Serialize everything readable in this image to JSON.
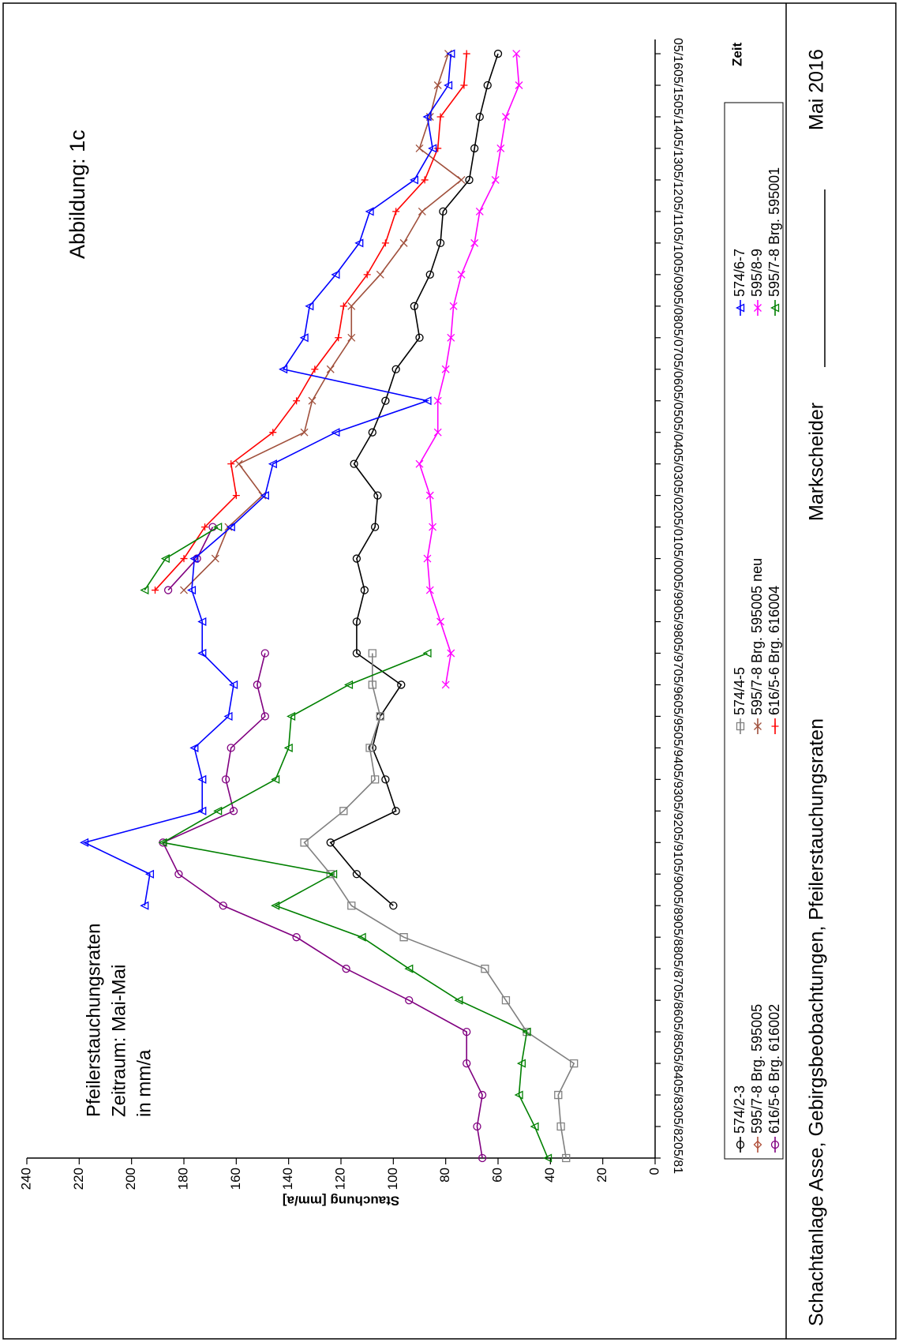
{
  "chart_data": {
    "type": "line",
    "title": "Abbildung:  1c",
    "annotation": [
      "Pfeilerstauchungsraten",
      "Zeitraum: Mai-Mai",
      "in mm/a"
    ],
    "x_label": "Zeit",
    "y_label": "Stauchung [mm/a]",
    "footer": {
      "left": "Schachtanlage Asse, Gebirgsbeobachtungen, Pfeilerstauchungsraten",
      "middle": "Markscheider",
      "right": "Mai 2016"
    },
    "categories": [
      "05/81",
      "05/82",
      "05/83",
      "05/84",
      "05/85",
      "05/86",
      "05/87",
      "05/88",
      "05/89",
      "05/90",
      "05/91",
      "05/92",
      "05/93",
      "05/94",
      "05/95",
      "05/96",
      "05/97",
      "05/98",
      "05/99",
      "05/00",
      "05/01",
      "05/02",
      "05/03",
      "05/04",
      "05/05",
      "05/06",
      "05/07",
      "05/08",
      "05/09",
      "05/10",
      "05/11",
      "05/12",
      "05/13",
      "05/14",
      "05/15",
      "05/16"
    ],
    "ylim": [
      0,
      240
    ],
    "yticks": [
      0,
      20,
      40,
      60,
      80,
      100,
      120,
      140,
      160,
      180,
      200,
      220,
      240
    ],
    "series": [
      {
        "name": "574/2-3",
        "color": "#000000",
        "marker": "circle",
        "values": [
          null,
          null,
          null,
          null,
          null,
          null,
          null,
          null,
          100,
          114,
          124,
          99,
          103,
          108,
          105,
          97,
          114,
          114,
          111,
          114,
          107,
          106,
          115,
          108,
          103,
          99,
          90,
          92,
          86,
          82,
          81,
          71,
          69,
          67,
          64,
          60
        ]
      },
      {
        "name": "595/7-8 Brg. 595005",
        "color": "#b0503a",
        "marker": "diamond",
        "values": [
          null,
          null,
          null,
          null,
          null,
          null,
          null,
          null,
          null,
          null,
          null,
          null,
          null,
          null,
          null,
          null,
          null,
          null,
          null,
          null,
          null,
          null,
          null,
          null,
          null,
          null,
          null,
          null,
          null,
          null,
          null,
          null,
          null,
          null,
          null,
          null
        ]
      },
      {
        "name": "616/5-6 Brg. 616002",
        "color": "#800080",
        "marker": "circle",
        "values": [
          66,
          68,
          66,
          72,
          72,
          94,
          118,
          137,
          165,
          182,
          188,
          161,
          164,
          162,
          149,
          152,
          149,
          null,
          186,
          175,
          169,
          null,
          null,
          null,
          null,
          null,
          null,
          null,
          null,
          null,
          null,
          null,
          null,
          null,
          null,
          null
        ]
      },
      {
        "name": "574/4-5",
        "color": "#808080",
        "marker": "square",
        "values": [
          34,
          36,
          37,
          31,
          49,
          57,
          65,
          96,
          116,
          124,
          134,
          119,
          107,
          109,
          105,
          108,
          108,
          null,
          null,
          null,
          null,
          null,
          null,
          null,
          null,
          null,
          null,
          null,
          null,
          null,
          null,
          null,
          null,
          null,
          null,
          null
        ]
      },
      {
        "name": "595/7-8 Brg. 595005 neu",
        "color": "#a0503c",
        "marker": "x",
        "values": [
          null,
          null,
          null,
          null,
          null,
          null,
          null,
          null,
          null,
          null,
          null,
          null,
          null,
          null,
          null,
          null,
          null,
          null,
          180,
          168,
          163,
          150,
          159,
          134,
          131,
          124,
          116,
          116,
          105,
          96,
          89,
          74,
          90,
          86,
          83,
          79
        ]
      },
      {
        "name": "616/5-6 Brg. 616004",
        "color": "#ff0000",
        "marker": "plus",
        "values": [
          null,
          null,
          null,
          null,
          null,
          null,
          null,
          null,
          null,
          null,
          null,
          null,
          null,
          null,
          null,
          null,
          null,
          null,
          191,
          180,
          172,
          160,
          162,
          146,
          137,
          130,
          121,
          119,
          110,
          103,
          99,
          88,
          83,
          82,
          73,
          72
        ]
      },
      {
        "name": "574/6-7",
        "color": "#0000ff",
        "marker": "triangle",
        "values": [
          null,
          null,
          null,
          null,
          null,
          null,
          null,
          null,
          195,
          193,
          218,
          173,
          173,
          176,
          163,
          161,
          173,
          173,
          177,
          176,
          162,
          149,
          146,
          122,
          87,
          142,
          134,
          132,
          122,
          113,
          109,
          92,
          85,
          87,
          79,
          78
        ]
      },
      {
        "name": "595/8-9",
        "color": "#ff00ff",
        "marker": "x",
        "values": [
          null,
          null,
          null,
          null,
          null,
          null,
          null,
          null,
          null,
          null,
          null,
          null,
          null,
          null,
          null,
          80,
          78,
          82,
          86,
          87,
          85,
          86,
          90,
          83,
          83,
          80,
          78,
          77,
          74,
          69,
          67,
          61,
          59,
          57,
          52,
          53
        ]
      },
      {
        "name": "595/7-8 Brg. 595001",
        "color": "#008000",
        "marker": "triangle",
        "values": [
          41,
          46,
          52,
          51,
          49,
          75,
          94,
          112,
          145,
          123,
          188,
          167,
          145,
          140,
          139,
          117,
          87,
          null,
          195,
          187,
          167,
          null,
          null,
          null,
          null,
          null,
          null,
          null,
          null,
          null,
          null,
          null,
          null,
          null,
          null,
          null
        ]
      }
    ]
  }
}
